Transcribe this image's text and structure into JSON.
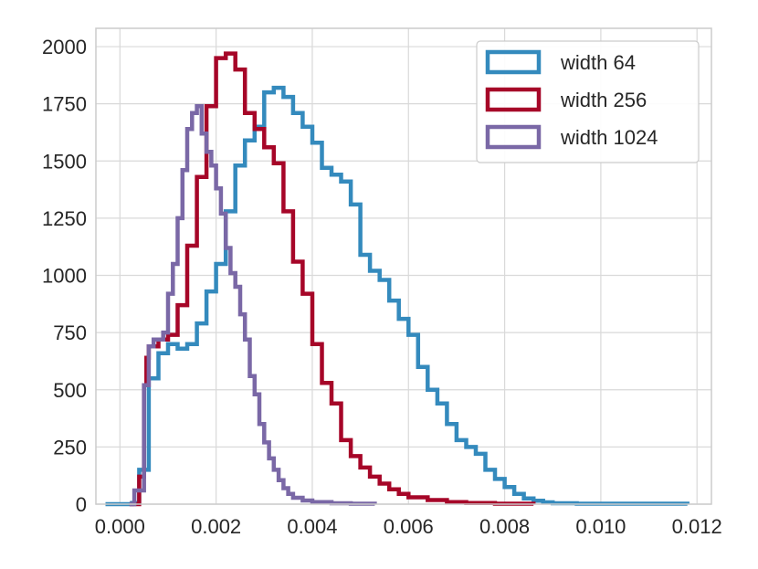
{
  "chart_data": {
    "type": "step-histogram",
    "title": "",
    "xlabel": "",
    "ylabel": "",
    "xlim": [
      -0.0005,
      0.0123
    ],
    "ylim": [
      0,
      2080
    ],
    "x_ticks": [
      0.0,
      0.002,
      0.004,
      0.006,
      0.008,
      0.01,
      0.012
    ],
    "x_tick_labels": [
      "0.000",
      "0.002",
      "0.004",
      "0.006",
      "0.008",
      "0.010",
      "0.012"
    ],
    "y_ticks": [
      0,
      250,
      500,
      750,
      1000,
      1250,
      1500,
      1750,
      2000
    ],
    "y_tick_labels": [
      "0",
      "250",
      "500",
      "750",
      "1000",
      "1250",
      "1500",
      "1750",
      "2000"
    ],
    "grid": true,
    "legend_position": "top-right",
    "series": [
      {
        "name": "width 64",
        "color": "#348ABD",
        "points": [
          [
            -0.0003,
            0
          ],
          [
            0.00025,
            5
          ],
          [
            0.0004,
            150
          ],
          [
            0.0006,
            550
          ],
          [
            0.0008,
            660
          ],
          [
            0.001,
            700
          ],
          [
            0.0012,
            680
          ],
          [
            0.0014,
            700
          ],
          [
            0.0016,
            790
          ],
          [
            0.0018,
            930
          ],
          [
            0.002,
            1050
          ],
          [
            0.0022,
            1280
          ],
          [
            0.0024,
            1480
          ],
          [
            0.0026,
            1590
          ],
          [
            0.0028,
            1650
          ],
          [
            0.003,
            1800
          ],
          [
            0.0032,
            1820
          ],
          [
            0.0034,
            1780
          ],
          [
            0.0036,
            1710
          ],
          [
            0.0038,
            1650
          ],
          [
            0.004,
            1580
          ],
          [
            0.0042,
            1470
          ],
          [
            0.0044,
            1440
          ],
          [
            0.0046,
            1410
          ],
          [
            0.0048,
            1310
          ],
          [
            0.005,
            1090
          ],
          [
            0.0052,
            1020
          ],
          [
            0.0054,
            980
          ],
          [
            0.0056,
            890
          ],
          [
            0.0058,
            810
          ],
          [
            0.006,
            740
          ],
          [
            0.0062,
            600
          ],
          [
            0.0064,
            500
          ],
          [
            0.0066,
            440
          ],
          [
            0.0068,
            350
          ],
          [
            0.007,
            280
          ],
          [
            0.0072,
            250
          ],
          [
            0.0074,
            220
          ],
          [
            0.0076,
            150
          ],
          [
            0.0078,
            110
          ],
          [
            0.008,
            75
          ],
          [
            0.0082,
            45
          ],
          [
            0.0084,
            25
          ],
          [
            0.0086,
            15
          ],
          [
            0.0088,
            8
          ],
          [
            0.009,
            4
          ],
          [
            0.0095,
            2
          ],
          [
            0.0118,
            0
          ]
        ]
      },
      {
        "name": "width 256",
        "color": "#A60628",
        "points": [
          [
            0.0002,
            0
          ],
          [
            0.0004,
            120
          ],
          [
            0.0005,
            520
          ],
          [
            0.00055,
            640
          ],
          [
            0.0006,
            690
          ],
          [
            0.0008,
            720
          ],
          [
            0.001,
            740
          ],
          [
            0.0012,
            870
          ],
          [
            0.0014,
            1130
          ],
          [
            0.0016,
            1430
          ],
          [
            0.0018,
            1740
          ],
          [
            0.002,
            1950
          ],
          [
            0.0022,
            1970
          ],
          [
            0.0024,
            1900
          ],
          [
            0.0026,
            1710
          ],
          [
            0.0028,
            1640
          ],
          [
            0.003,
            1560
          ],
          [
            0.0032,
            1490
          ],
          [
            0.0034,
            1280
          ],
          [
            0.0036,
            1060
          ],
          [
            0.0038,
            920
          ],
          [
            0.004,
            700
          ],
          [
            0.0042,
            530
          ],
          [
            0.0044,
            440
          ],
          [
            0.0046,
            280
          ],
          [
            0.0048,
            210
          ],
          [
            0.005,
            160
          ],
          [
            0.0052,
            120
          ],
          [
            0.0054,
            90
          ],
          [
            0.0056,
            65
          ],
          [
            0.0058,
            45
          ],
          [
            0.006,
            30
          ],
          [
            0.0064,
            18
          ],
          [
            0.0068,
            9
          ],
          [
            0.0072,
            5
          ],
          [
            0.0078,
            2
          ],
          [
            0.0086,
            0
          ]
        ]
      },
      {
        "name": "width 1024",
        "color": "#7A68A6",
        "points": [
          [
            0.0002,
            0
          ],
          [
            0.0003,
            60
          ],
          [
            0.0005,
            520
          ],
          [
            0.0006,
            690
          ],
          [
            0.0007,
            720
          ],
          [
            0.0009,
            750
          ],
          [
            0.001,
            920
          ],
          [
            0.0011,
            1050
          ],
          [
            0.0012,
            1250
          ],
          [
            0.0013,
            1460
          ],
          [
            0.0014,
            1640
          ],
          [
            0.0015,
            1710
          ],
          [
            0.0016,
            1740
          ],
          [
            0.0017,
            1620
          ],
          [
            0.0018,
            1540
          ],
          [
            0.0019,
            1480
          ],
          [
            0.002,
            1380
          ],
          [
            0.0021,
            1270
          ],
          [
            0.0022,
            1120
          ],
          [
            0.0023,
            1010
          ],
          [
            0.0024,
            950
          ],
          [
            0.0025,
            830
          ],
          [
            0.0026,
            720
          ],
          [
            0.0027,
            560
          ],
          [
            0.0028,
            480
          ],
          [
            0.0029,
            350
          ],
          [
            0.003,
            270
          ],
          [
            0.0031,
            200
          ],
          [
            0.0032,
            150
          ],
          [
            0.0033,
            105
          ],
          [
            0.0034,
            70
          ],
          [
            0.0035,
            45
          ],
          [
            0.0036,
            28
          ],
          [
            0.0038,
            16
          ],
          [
            0.004,
            9
          ],
          [
            0.0044,
            4
          ],
          [
            0.0048,
            2
          ],
          [
            0.0053,
            0
          ]
        ]
      }
    ]
  }
}
